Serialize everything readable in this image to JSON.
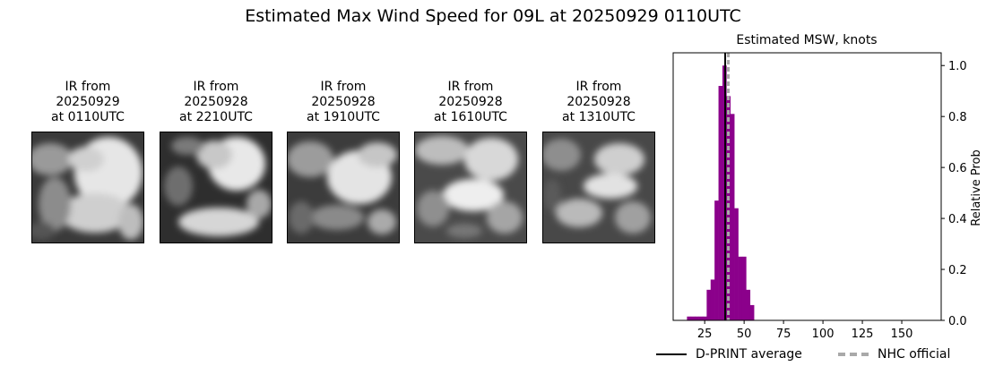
{
  "title": "Estimated Max Wind Speed for 09L at 20250929 0110UTC",
  "panels": [
    {
      "line1": "IR from",
      "line2": "20250929",
      "line3": "at 0110UTC"
    },
    {
      "line1": "IR from",
      "line2": "20250928",
      "line3": "at 2210UTC"
    },
    {
      "line1": "IR from",
      "line2": "20250928",
      "line3": "at 1910UTC"
    },
    {
      "line1": "IR from",
      "line2": "20250928",
      "line3": "at 1610UTC"
    },
    {
      "line1": "IR from",
      "line2": "20250928",
      "line3": "at 1310UTC"
    }
  ],
  "chart_data": {
    "type": "bar",
    "title": "Estimated MSW, knots",
    "xlabel": "",
    "ylabel": "Relative Prob",
    "xlim": [
      5,
      175
    ],
    "ylim": [
      0,
      1.05
    ],
    "xticks": [
      25,
      50,
      75,
      100,
      125,
      150
    ],
    "yticks": [
      "0.0",
      "0.2",
      "0.4",
      "0.6",
      "0.8",
      "1.0"
    ],
    "bin_width": 2.5,
    "bins": [
      {
        "x": 15,
        "value": 0.015
      },
      {
        "x": 17.5,
        "value": 0.015
      },
      {
        "x": 20,
        "value": 0.015
      },
      {
        "x": 22.5,
        "value": 0.015
      },
      {
        "x": 25,
        "value": 0.015
      },
      {
        "x": 27.5,
        "value": 0.12
      },
      {
        "x": 30,
        "value": 0.16
      },
      {
        "x": 32.5,
        "value": 0.47
      },
      {
        "x": 35,
        "value": 0.92
      },
      {
        "x": 37.5,
        "value": 1.0
      },
      {
        "x": 40,
        "value": 0.88
      },
      {
        "x": 42.5,
        "value": 0.81
      },
      {
        "x": 45,
        "value": 0.44
      },
      {
        "x": 47.5,
        "value": 0.25
      },
      {
        "x": 50,
        "value": 0.25
      },
      {
        "x": 52.5,
        "value": 0.12
      },
      {
        "x": 55,
        "value": 0.06
      }
    ],
    "dprint_average": 38,
    "nhc_official": 40,
    "bar_color": "#8b008b",
    "legend": [
      {
        "label": "D-PRINT average",
        "style": "solid",
        "color": "#000000"
      },
      {
        "label": "NHC official",
        "style": "dashed",
        "color": "#a9a9a9"
      }
    ],
    "legend_position": "bottom"
  }
}
